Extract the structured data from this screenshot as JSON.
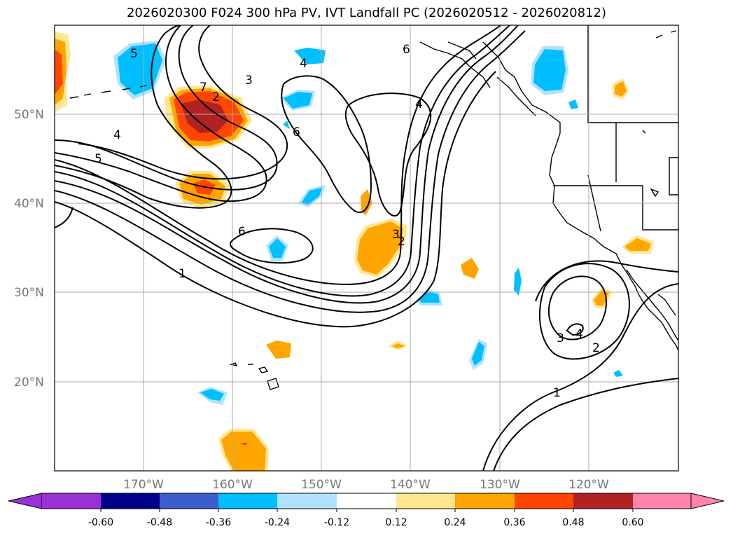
{
  "title": "2026020300 F024 300 hPa PV, IVT Landfall PC (2026020512 - 2026020812)",
  "map": {
    "lon_ticks": [
      "170°W",
      "160°W",
      "150°W",
      "140°W",
      "130°W",
      "120°W"
    ],
    "lat_ticks": [
      "50°N",
      "40°N",
      "30°N",
      "20°N"
    ],
    "gridlines": true,
    "contour_labels": [
      "6",
      "4",
      "7",
      "2",
      "3",
      "5",
      "4",
      "5",
      "6",
      "6",
      "4",
      "3",
      "2",
      "1",
      "3",
      "4",
      "2",
      "1"
    ]
  },
  "colorbar": {
    "labels": [
      "-0.60",
      "-0.48",
      "-0.36",
      "-0.24",
      "-0.12",
      "0.12",
      "0.24",
      "0.36",
      "0.48",
      "0.60"
    ],
    "colors": {
      "under": "#9b30d9",
      "bins": [
        "#00008b",
        "#3a5fcd",
        "#00bfff",
        "#b0e2ff",
        "#ffffff",
        "#ffe68f",
        "#ffa500",
        "#ff4500",
        "#b22222"
      ],
      "over": "#ff83aa"
    }
  },
  "colors": {
    "blue": "#00bfff",
    "lightblue": "#b0e2ff",
    "yellow": "#ffe68f",
    "orange": "#ffa500",
    "red": "#ff4500",
    "darkred": "#b22222"
  }
}
